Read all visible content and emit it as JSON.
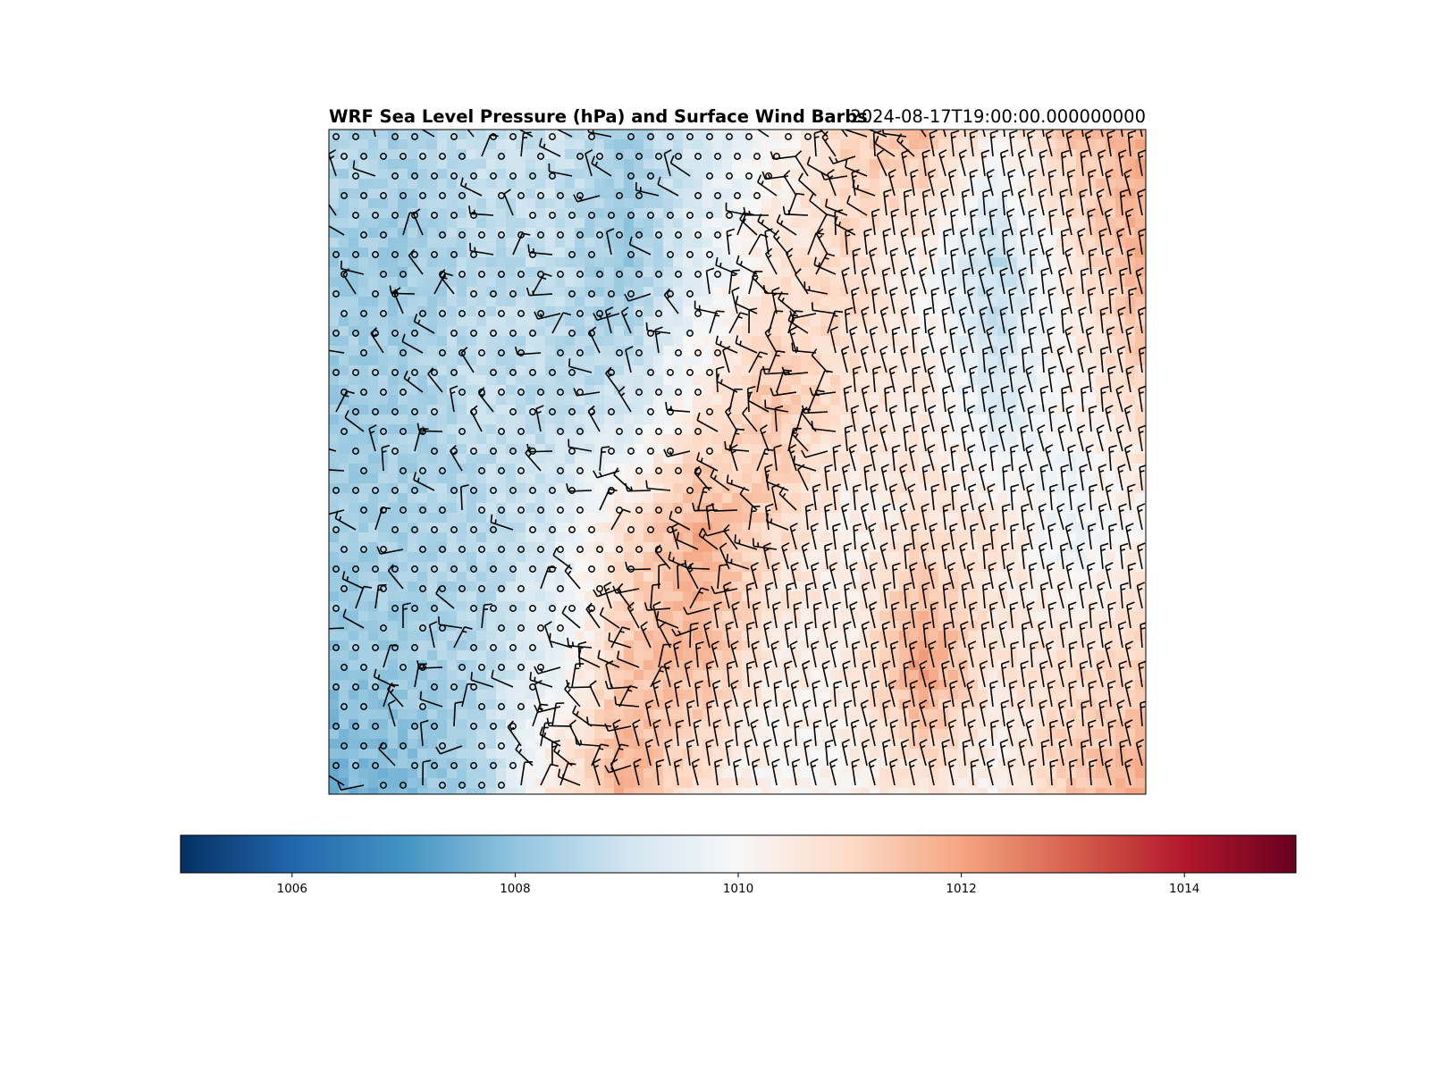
{
  "chart_data": {
    "type": "heatmap",
    "title": "WRF Sea Level Pressure (hPa) and Surface Wind Barbs",
    "subtitle": "2024-08-17T19:00:00.000000000",
    "xlabel": "",
    "ylabel": "",
    "colormap": "RdBu_r",
    "colorbar": {
      "orientation": "horizontal",
      "vmin": 1005,
      "vmax": 1015,
      "ticks": [
        1006,
        1008,
        1010,
        1012,
        1014
      ],
      "tick_labels": [
        "1006",
        "1008",
        "1010",
        "1012",
        "1014"
      ],
      "colors": [
        "#053061",
        "#2166ac",
        "#4393c3",
        "#92c5de",
        "#d1e5f0",
        "#f7f7f7",
        "#fddbc7",
        "#f4a582",
        "#d6604d",
        "#b2182b",
        "#67001f"
      ]
    },
    "pressure_range_shown": [
      1007.5,
      1012.5
    ],
    "field_description_grid": [
      [
        1008.6,
        1008.4,
        1008.8,
        1009.0,
        1008.3,
        1009.2,
        1010.0,
        1011.2,
        1011.6,
        1010.4,
        1011.4,
        1011.8
      ],
      [
        1008.3,
        1008.2,
        1008.6,
        1008.8,
        1008.1,
        1009.4,
        1010.6,
        1011.0,
        1010.2,
        1008.6,
        1010.6,
        1011.9
      ],
      [
        1008.2,
        1008.3,
        1008.8,
        1008.6,
        1008.9,
        1010.4,
        1011.4,
        1010.8,
        1010.4,
        1009.2,
        1010.2,
        1011.0
      ],
      [
        1008.3,
        1008.4,
        1008.5,
        1009.2,
        1010.8,
        1011.9,
        1011.0,
        1010.2,
        1010.8,
        1010.6,
        1009.6,
        1010.2
      ],
      [
        1008.0,
        1008.2,
        1008.6,
        1009.6,
        1011.4,
        1011.6,
        1010.4,
        1010.4,
        1012.2,
        1010.6,
        1010.8,
        1011.2
      ],
      [
        1007.6,
        1007.8,
        1008.4,
        1010.6,
        1011.8,
        1010.6,
        1010.0,
        1010.2,
        1010.6,
        1010.2,
        1011.4,
        1011.8
      ]
    ],
    "wind_barbs_rendered": true
  }
}
